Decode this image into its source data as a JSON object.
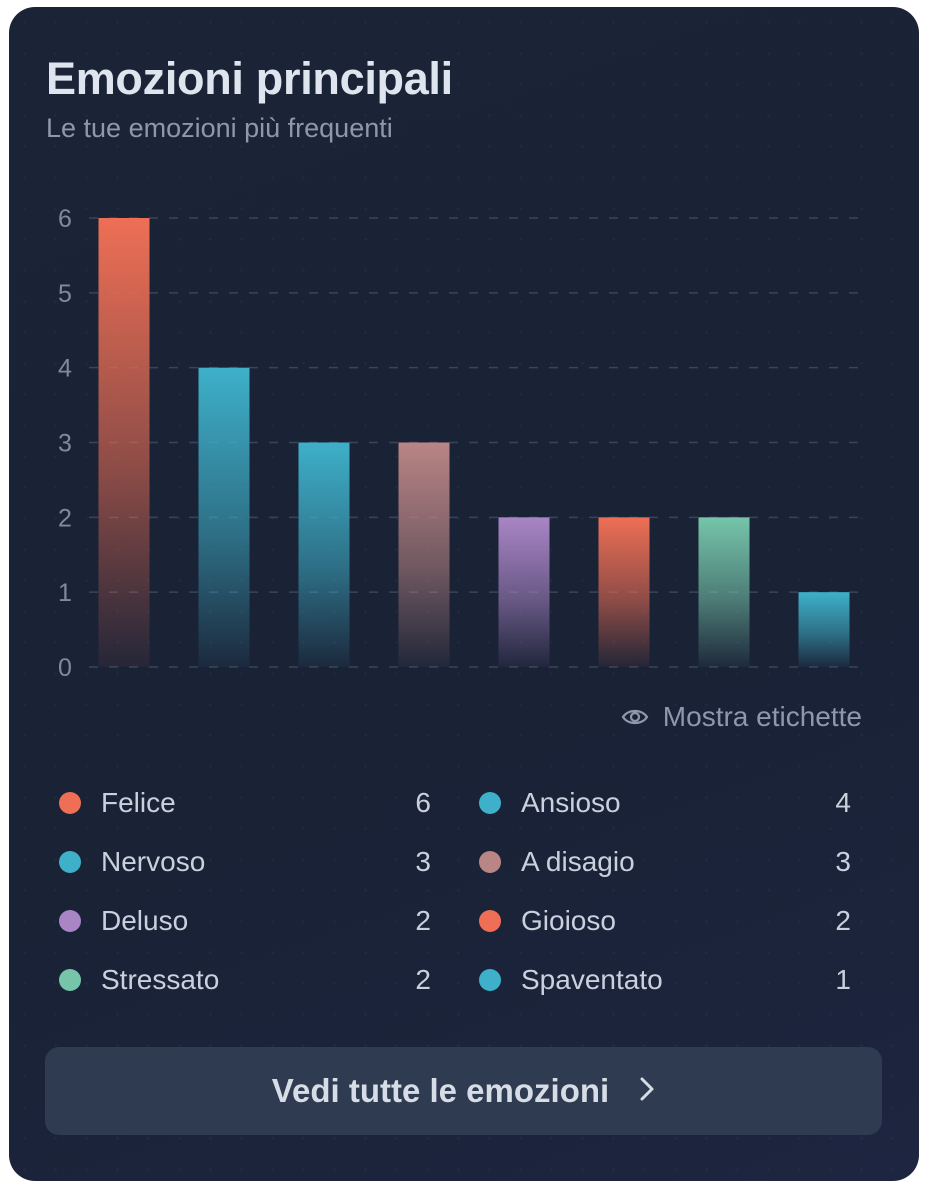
{
  "card": {
    "title": "Emozioni principali",
    "subtitle": "Le tue emozioni più frequenti"
  },
  "chart_data": {
    "type": "bar",
    "categories": [
      "Felice",
      "Ansioso",
      "Nervoso",
      "A disagio",
      "Deluso",
      "Gioioso",
      "Stressato",
      "Spaventato"
    ],
    "values": [
      6,
      4,
      3,
      3,
      2,
      2,
      2,
      1
    ],
    "colors": [
      "#ee6f55",
      "#3eb0c9",
      "#3eb0c9",
      "#b98585",
      "#a985c6",
      "#ee6f55",
      "#76c5aa",
      "#3eb0c9"
    ],
    "ylim": [
      0,
      6
    ],
    "yticks": [
      0,
      1,
      2,
      3,
      4,
      5,
      6
    ],
    "grid": true,
    "xlabel": "",
    "ylabel": ""
  },
  "toggle": {
    "label": "Mostra etichette",
    "icon": "eye-icon"
  },
  "legend": [
    {
      "label": "Felice",
      "value": "6",
      "color": "#ee6f55"
    },
    {
      "label": "Ansioso",
      "value": "4",
      "color": "#3eb0c9"
    },
    {
      "label": "Nervoso",
      "value": "3",
      "color": "#3eb0c9"
    },
    {
      "label": "A disagio",
      "value": "3",
      "color": "#b98585"
    },
    {
      "label": "Deluso",
      "value": "2",
      "color": "#a985c6"
    },
    {
      "label": "Gioioso",
      "value": "2",
      "color": "#ee6f55"
    },
    {
      "label": "Stressato",
      "value": "2",
      "color": "#76c5aa"
    },
    {
      "label": "Spaventato",
      "value": "1",
      "color": "#3eb0c9"
    }
  ],
  "footer": {
    "button_label": "Vedi tutte le emozioni",
    "button_icon": "chevron-right-icon"
  }
}
